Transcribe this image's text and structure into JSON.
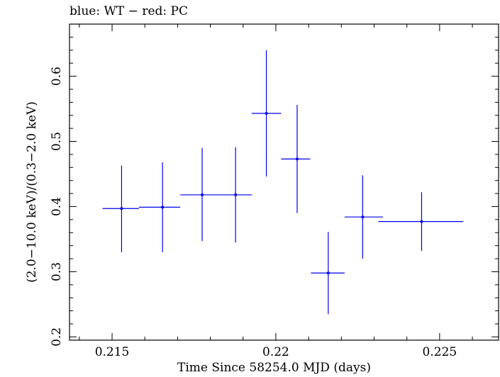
{
  "chart_data": {
    "type": "scatter",
    "title": "blue: WT − red: PC",
    "xlabel": "Time Since 58254.0 MJD (days)",
    "ylabel": "(2.0−10.0 keV)/(0.3−2.0 keV)",
    "xlim": [
      0.2137,
      0.2268
    ],
    "ylim": [
      0.195,
      0.68
    ],
    "xticks": [
      0.215,
      0.22,
      0.225
    ],
    "xtick_labels": [
      "0.215",
      "0.22",
      "0.225"
    ],
    "yticks": [
      0.2,
      0.3,
      0.4,
      0.5,
      0.6
    ],
    "ytick_labels": [
      "0.2",
      "0.3",
      "0.4",
      "0.5",
      "0.6"
    ],
    "grid": false,
    "series": [
      {
        "color": "#0000ee",
        "points": [
          {
            "x": 0.21529,
            "y": 0.397,
            "xerr_low": 0.00058,
            "xerr_high": 0.00053,
            "y_low": 0.33,
            "y_high": 0.463
          },
          {
            "x": 0.21654,
            "y": 0.399,
            "xerr_low": 0.00072,
            "xerr_high": 0.00054,
            "y_low": 0.33,
            "y_high": 0.468
          },
          {
            "x": 0.21775,
            "y": 0.418,
            "xerr_low": 0.00067,
            "xerr_high": 0.00049,
            "y_low": 0.347,
            "y_high": 0.49
          },
          {
            "x": 0.21877,
            "y": 0.418,
            "xerr_low": 0.00053,
            "xerr_high": 0.0005,
            "y_low": 0.345,
            "y_high": 0.491
          },
          {
            "x": 0.21971,
            "y": 0.543,
            "xerr_low": 0.00045,
            "xerr_high": 0.00045,
            "y_low": 0.446,
            "y_high": 0.64
          },
          {
            "x": 0.22065,
            "y": 0.473,
            "xerr_low": 0.00049,
            "xerr_high": 0.0004,
            "y_low": 0.39,
            "y_high": 0.556
          },
          {
            "x": 0.2216,
            "y": 0.298,
            "xerr_low": 0.00053,
            "xerr_high": 0.0005,
            "y_low": 0.235,
            "y_high": 0.361
          },
          {
            "x": 0.22265,
            "y": 0.384,
            "xerr_low": 0.00055,
            "xerr_high": 0.00062,
            "y_low": 0.32,
            "y_high": 0.448
          },
          {
            "x": 0.22445,
            "y": 0.377,
            "xerr_low": 0.00132,
            "xerr_high": 0.00127,
            "y_low": 0.332,
            "y_high": 0.422
          }
        ]
      }
    ]
  }
}
